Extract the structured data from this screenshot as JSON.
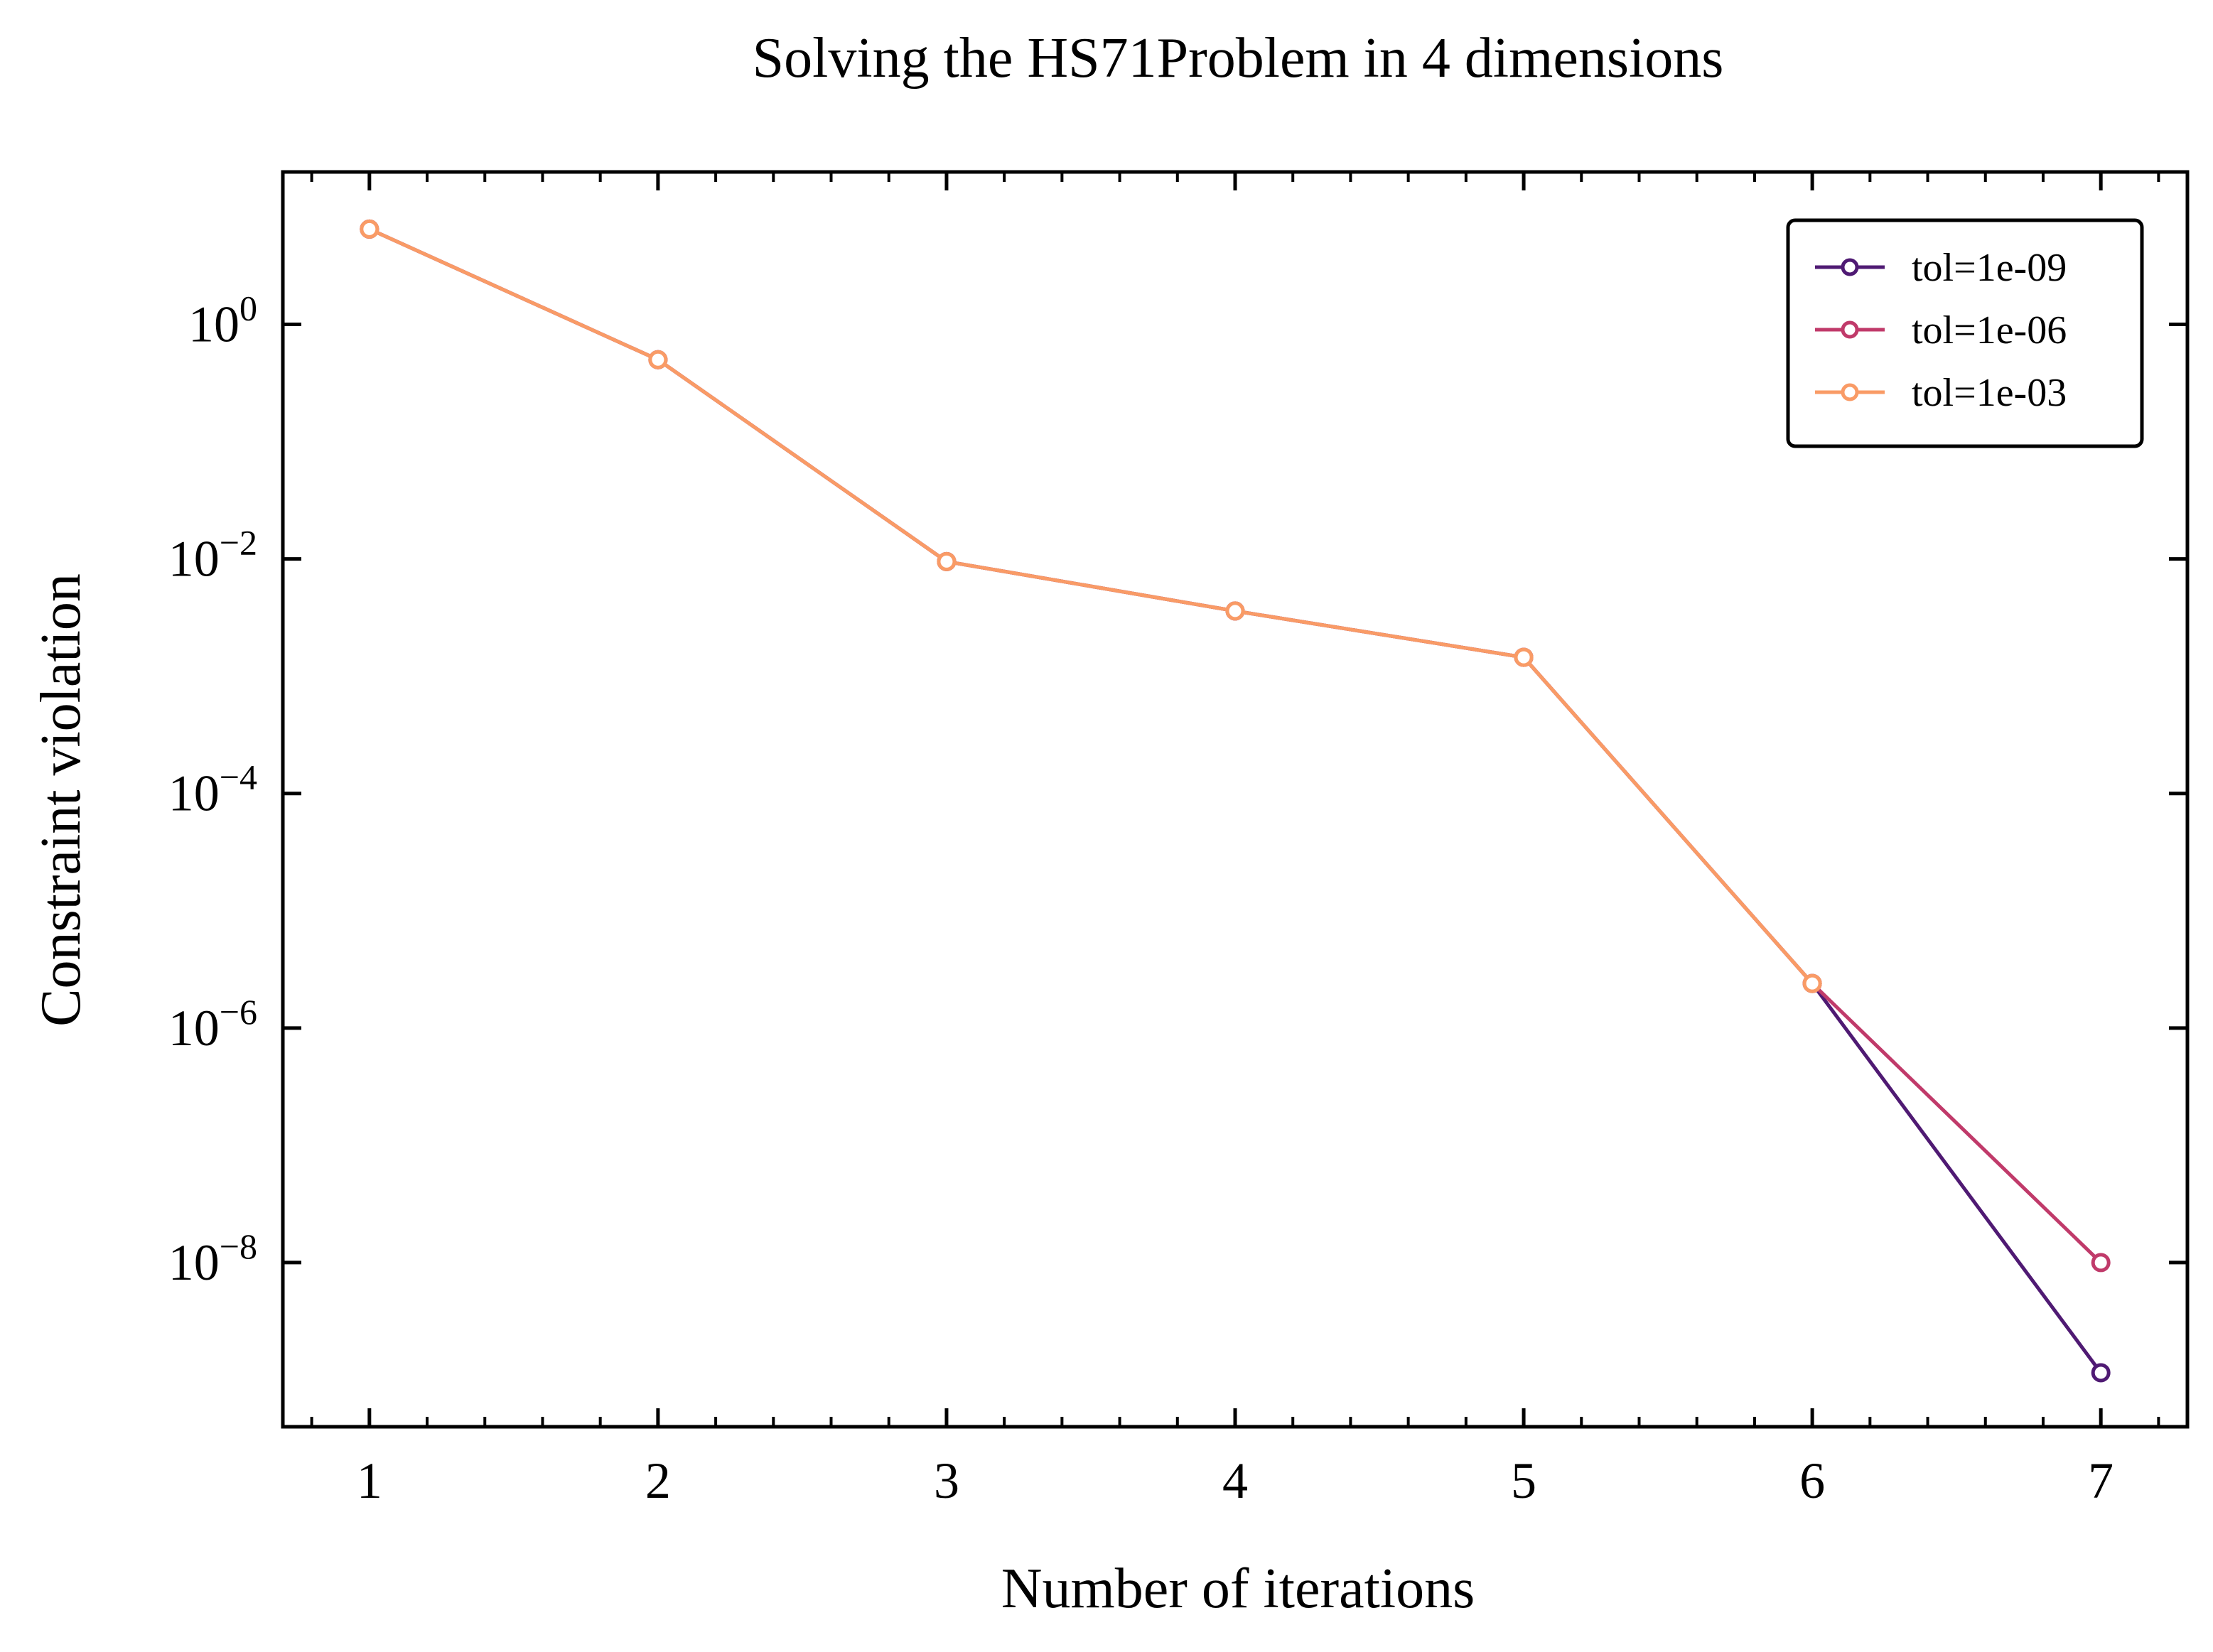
{
  "chart_data": {
    "type": "line",
    "title": "Solving the HS71Problem in 4 dimensions",
    "xlabel": "Number of iterations",
    "ylabel": "Constraint violation",
    "yscale": "log",
    "xlim": [
      0.7,
      7.3
    ],
    "ylim_exponent": [
      -9.4,
      1.3
    ],
    "x_ticks": [
      1,
      2,
      3,
      4,
      5,
      6,
      7
    ],
    "y_ticks": [
      {
        "exponent": 0,
        "base": "10",
        "sup": "0"
      },
      {
        "exponent": -2,
        "base": "10",
        "sup": "−2"
      },
      {
        "exponent": -4,
        "base": "10",
        "sup": "−4"
      },
      {
        "exponent": -6,
        "base": "10",
        "sup": "−6"
      },
      {
        "exponent": -8,
        "base": "10",
        "sup": "−8"
      }
    ],
    "grid": false,
    "legend_position": "top-right",
    "series": [
      {
        "name": "tol=1e-09",
        "color": "#4f1a73",
        "x": [
          1,
          2,
          3,
          4,
          5,
          6,
          7
        ],
        "y": [
          6.5,
          0.5,
          0.0095,
          0.0036,
          0.00145,
          2.4e-06,
          1.15e-09
        ]
      },
      {
        "name": "tol=1e-06",
        "color": "#c03a6a",
        "x": [
          1,
          2,
          3,
          4,
          5,
          6,
          7
        ],
        "y": [
          6.5,
          0.5,
          0.0095,
          0.0036,
          0.00145,
          2.4e-06,
          1e-08
        ]
      },
      {
        "name": "tol=1e-03",
        "color": "#f99b66",
        "x": [
          1,
          2,
          3,
          4,
          5,
          6
        ],
        "y": [
          6.5,
          0.5,
          0.0095,
          0.0036,
          0.00145,
          2.4e-06
        ]
      }
    ]
  }
}
